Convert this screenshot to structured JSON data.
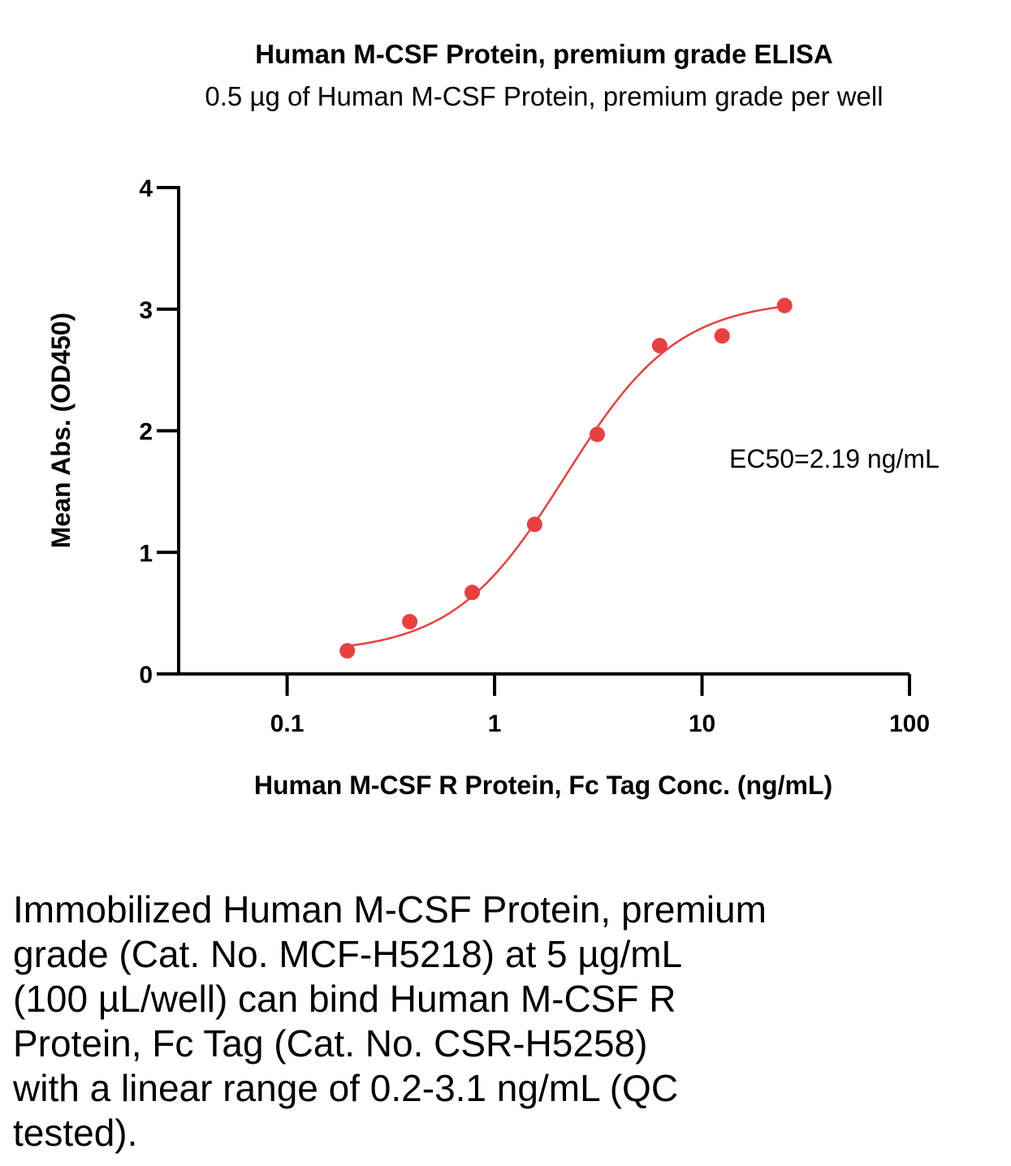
{
  "chart_data": {
    "type": "scatter",
    "title": "Human M-CSF Protein, premium grade ELISA",
    "subtitle": "0.5 µg of Human M-CSF Protein, premium grade per well",
    "xlabel": "Human M-CSF R Protein, Fc Tag Conc. (ng/mL)",
    "ylabel": "Mean Abs. (OD450)",
    "xscale": "log",
    "xlim": [
      0.03,
      100
    ],
    "ylim": [
      0,
      4
    ],
    "xticks": [
      0.1,
      1,
      10,
      100
    ],
    "xtick_labels": [
      "0.1",
      "1",
      "10",
      "100"
    ],
    "yticks": [
      0,
      1,
      2,
      3,
      4
    ],
    "ytick_labels": [
      "0",
      "1",
      "2",
      "3",
      "4"
    ],
    "color": "#e8403f",
    "series": [
      {
        "name": "Human M-CSF R Protein, Fc Tag",
        "x": [
          0.195,
          0.39,
          0.78,
          1.56,
          3.125,
          6.25,
          12.5,
          25
        ],
        "y": [
          0.19,
          0.43,
          0.67,
          1.23,
          1.97,
          2.7,
          2.78,
          3.03
        ]
      }
    ],
    "fit": {
      "model": "4PL",
      "bottom": 0.17,
      "top": 3.08,
      "ec50": 2.19,
      "hill": 1.6,
      "x_range": [
        0.195,
        25
      ]
    },
    "annotation": "EC50=2.19 ng/mL"
  },
  "caption": "Immobilized Human M-CSF Protein, premium\ngrade (Cat. No. MCF-H5218) at 5 µg/mL\n(100 µL/well) can bind Human M-CSF R\nProtein, Fc Tag (Cat. No. CSR-H5258)\nwith a linear range of 0.2-3.1 ng/mL (QC\ntested)."
}
